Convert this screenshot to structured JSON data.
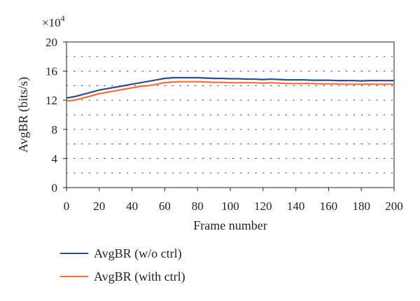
{
  "chart_data": {
    "type": "line",
    "ylabel": "AvgBR (bits/s)",
    "xlabel": "Frame number",
    "y_multiplier": "×10",
    "y_exponent": "4",
    "xlim": [
      0,
      200
    ],
    "ylim": [
      0,
      20
    ],
    "xticks": [
      0,
      20,
      40,
      60,
      80,
      100,
      120,
      140,
      160,
      180,
      200
    ],
    "yticks": [
      0,
      4,
      8,
      12,
      16,
      20
    ],
    "grid": "dotted",
    "legend_position": "bottom",
    "series": [
      {
        "name": "AvgBR (w/o ctrl)",
        "color": "#2b4f8c",
        "x": [
          0,
          5,
          10,
          15,
          20,
          25,
          30,
          35,
          40,
          45,
          50,
          55,
          60,
          65,
          70,
          75,
          80,
          85,
          90,
          95,
          100,
          105,
          110,
          115,
          120,
          125,
          130,
          135,
          140,
          145,
          150,
          155,
          160,
          165,
          170,
          175,
          180,
          185,
          190,
          195,
          200
        ],
        "y": [
          12.3,
          12.5,
          12.8,
          13.1,
          13.4,
          13.6,
          13.8,
          14.0,
          14.2,
          14.4,
          14.6,
          14.8,
          15.0,
          15.1,
          15.1,
          15.1,
          15.1,
          15.05,
          15.0,
          15.0,
          14.95,
          14.95,
          14.9,
          14.9,
          14.85,
          14.9,
          14.85,
          14.8,
          14.8,
          14.8,
          14.75,
          14.75,
          14.75,
          14.7,
          14.7,
          14.7,
          14.65,
          14.7,
          14.7,
          14.7,
          14.7
        ]
      },
      {
        "name": "AvgBR (with ctrl)",
        "color": "#f26b3a",
        "x": [
          0,
          5,
          10,
          15,
          20,
          25,
          30,
          35,
          40,
          45,
          50,
          55,
          60,
          65,
          70,
          75,
          80,
          85,
          90,
          95,
          100,
          105,
          110,
          115,
          120,
          125,
          130,
          135,
          140,
          145,
          150,
          155,
          160,
          165,
          170,
          175,
          180,
          185,
          190,
          195,
          200
        ],
        "y": [
          11.9,
          12.0,
          12.3,
          12.6,
          12.9,
          13.1,
          13.3,
          13.5,
          13.7,
          13.9,
          14.0,
          14.2,
          14.4,
          14.5,
          14.55,
          14.55,
          14.55,
          14.5,
          14.45,
          14.45,
          14.4,
          14.4,
          14.4,
          14.4,
          14.35,
          14.4,
          14.35,
          14.3,
          14.3,
          14.3,
          14.3,
          14.25,
          14.25,
          14.25,
          14.2,
          14.2,
          14.2,
          14.2,
          14.2,
          14.2,
          14.2
        ]
      }
    ]
  }
}
